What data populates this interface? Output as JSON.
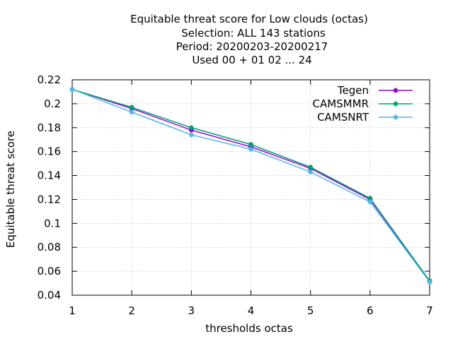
{
  "chart_data": {
    "type": "line",
    "title_lines": [
      "Equitable threat score  for Low clouds (octas)",
      "Selection: ALL    143 stations",
      "Period: 20200203-20200217",
      "Used  00 + 01 02 ... 24"
    ],
    "xlabel": "thresholds octas",
    "ylabel": "Equitable threat score",
    "x": [
      1,
      2,
      3,
      4,
      5,
      6,
      7
    ],
    "xlim": [
      1,
      7
    ],
    "ylim": [
      0.04,
      0.22
    ],
    "x_ticks": [
      1,
      2,
      3,
      4,
      5,
      6,
      7
    ],
    "y_ticks": [
      0.04,
      0.06,
      0.08,
      0.1,
      0.12,
      0.14,
      0.16,
      0.18,
      0.2,
      0.22
    ],
    "grid": true,
    "legend_position": "top-right",
    "series": [
      {
        "name": "Tegen",
        "color": "#9400d3",
        "values": [
          0.212,
          0.196,
          0.178,
          0.164,
          0.146,
          0.12,
          0.052
        ]
      },
      {
        "name": "CAMSMMR",
        "color": "#009e73",
        "values": [
          0.212,
          0.197,
          0.18,
          0.166,
          0.147,
          0.121,
          0.052
        ]
      },
      {
        "name": "CAMSNRT",
        "color": "#56b4e9",
        "values": [
          0.212,
          0.193,
          0.174,
          0.162,
          0.143,
          0.118,
          0.051
        ]
      }
    ]
  }
}
